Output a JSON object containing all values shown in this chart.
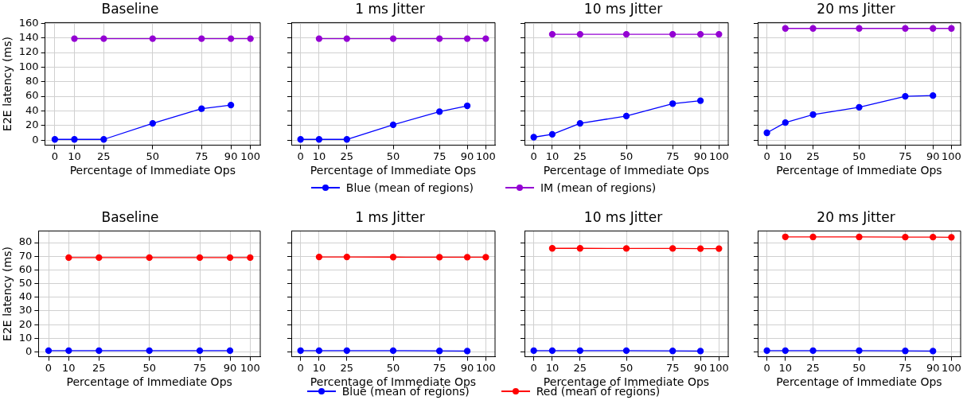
{
  "chart_data": [
    {
      "type": "line",
      "title": "Baseline",
      "xlabel": "Percentage of Immediate Ops",
      "ylabel": "E2E latency (ms)",
      "xlim": [
        -5,
        105
      ],
      "xticks": [
        0,
        10,
        25,
        50,
        75,
        90,
        100
      ],
      "ylim": [
        -7,
        161
      ],
      "yticks": [
        0,
        20,
        40,
        60,
        80,
        100,
        120,
        140,
        160
      ],
      "grid": true,
      "marker": "circle",
      "legend": "bottom",
      "series": [
        {
          "name": "Blue (mean of regions)",
          "color": "#0000ff",
          "x": [
            0,
            10,
            25,
            50,
            75,
            90
          ],
          "values": [
            1,
            1,
            1,
            23,
            43,
            48
          ]
        },
        {
          "name": "IM (mean of regions)",
          "color": "#9400d3",
          "x": [
            10,
            25,
            50,
            75,
            90,
            100
          ],
          "values": [
            139,
            139,
            139,
            139,
            139,
            139
          ]
        }
      ]
    },
    {
      "type": "line",
      "title": "1 ms Jitter",
      "xlabel": "Percentage of Immediate Ops",
      "xlim": [
        -5,
        105
      ],
      "xticks": [
        0,
        10,
        25,
        50,
        75,
        90,
        100
      ],
      "ylim": [
        -7,
        161
      ],
      "yticks": [
        0,
        20,
        40,
        60,
        80,
        100,
        120,
        140,
        160
      ],
      "tick_labels": "x",
      "grid": true,
      "marker": "circle",
      "series": [
        {
          "color": "#0000ff",
          "x": [
            0,
            10,
            25,
            50,
            75,
            90
          ],
          "values": [
            1,
            1,
            1,
            21,
            39,
            47
          ]
        },
        {
          "color": "#9400d3",
          "x": [
            10,
            25,
            50,
            75,
            90,
            100
          ],
          "values": [
            139,
            139,
            139,
            139,
            139,
            139
          ]
        }
      ]
    },
    {
      "type": "line",
      "title": "10 ms Jitter",
      "xlabel": "Percentage of Immediate Ops",
      "xlim": [
        -5,
        105
      ],
      "xticks": [
        0,
        10,
        25,
        50,
        75,
        90,
        100
      ],
      "ylim": [
        -7,
        161
      ],
      "yticks": [
        0,
        20,
        40,
        60,
        80,
        100,
        120,
        140,
        160
      ],
      "tick_labels": "x",
      "grid": true,
      "marker": "circle",
      "series": [
        {
          "color": "#0000ff",
          "x": [
            0,
            10,
            25,
            50,
            75,
            90
          ],
          "values": [
            4,
            8,
            23,
            33,
            50,
            54
          ]
        },
        {
          "color": "#9400d3",
          "x": [
            10,
            25,
            50,
            75,
            90,
            100
          ],
          "values": [
            145,
            145,
            145,
            145,
            145,
            145
          ]
        }
      ]
    },
    {
      "type": "line",
      "title": "20 ms Jitter",
      "xlabel": "Percentage of Immediate Ops",
      "xlim": [
        -5,
        105
      ],
      "xticks": [
        0,
        10,
        25,
        50,
        75,
        90,
        100
      ],
      "ylim": [
        -7,
        161
      ],
      "yticks": [
        0,
        20,
        40,
        60,
        80,
        100,
        120,
        140,
        160
      ],
      "tick_labels": "x",
      "grid": true,
      "marker": "circle",
      "series": [
        {
          "color": "#0000ff",
          "x": [
            0,
            10,
            25,
            50,
            75,
            90
          ],
          "values": [
            10,
            24,
            35,
            45,
            60,
            61
          ]
        },
        {
          "color": "#9400d3",
          "x": [
            10,
            25,
            50,
            75,
            90,
            100
          ],
          "values": [
            153,
            153,
            153,
            153,
            153,
            153
          ]
        }
      ]
    },
    {
      "type": "line",
      "title": "Baseline",
      "xlabel": "Percentage of Immediate Ops",
      "ylabel": "E2E latency (ms)",
      "xlim": [
        -5,
        105
      ],
      "xticks": [
        0,
        10,
        25,
        50,
        75,
        90,
        100
      ],
      "ylim": [
        -3.5,
        88.5
      ],
      "yticks": [
        0,
        10,
        20,
        30,
        40,
        50,
        60,
        70,
        80
      ],
      "grid": true,
      "marker": "circle",
      "legend": "bottom",
      "series": [
        {
          "name": "Blue (mean of regions)",
          "color": "#0000ff",
          "x": [
            0,
            10,
            25,
            50,
            75,
            90
          ],
          "values": [
            1,
            1,
            1,
            1,
            1,
            1
          ]
        },
        {
          "name": "Red (mean of regions)",
          "color": "#ff0000",
          "x": [
            10,
            25,
            50,
            75,
            90,
            100
          ],
          "values": [
            69,
            69,
            69,
            69,
            69,
            69
          ]
        }
      ]
    },
    {
      "type": "line",
      "title": "1 ms Jitter",
      "xlabel": "Percentage of Immediate Ops",
      "xlim": [
        -5,
        105
      ],
      "xticks": [
        0,
        10,
        25,
        50,
        75,
        90,
        100
      ],
      "ylim": [
        -3.5,
        88.5
      ],
      "yticks": [
        0,
        10,
        20,
        30,
        40,
        50,
        60,
        70,
        80
      ],
      "tick_labels": "x",
      "grid": true,
      "marker": "circle",
      "series": [
        {
          "color": "#0000ff",
          "x": [
            0,
            10,
            25,
            50,
            75,
            90
          ],
          "values": [
            1,
            1,
            1,
            1,
            0.8,
            0.7
          ]
        },
        {
          "color": "#ff0000",
          "x": [
            10,
            25,
            50,
            75,
            90,
            100
          ],
          "values": [
            69.5,
            69.5,
            69.4,
            69.3,
            69.3,
            69.3
          ]
        }
      ]
    },
    {
      "type": "line",
      "title": "10 ms Jitter",
      "xlabel": "Percentage of Immediate Ops",
      "xlim": [
        -5,
        105
      ],
      "xticks": [
        0,
        10,
        25,
        50,
        75,
        90,
        100
      ],
      "ylim": [
        -3.5,
        88.5
      ],
      "yticks": [
        0,
        10,
        20,
        30,
        40,
        50,
        60,
        70,
        80
      ],
      "tick_labels": "x",
      "grid": true,
      "marker": "circle",
      "series": [
        {
          "color": "#0000ff",
          "x": [
            0,
            10,
            25,
            50,
            75,
            90
          ],
          "values": [
            1,
            1,
            1,
            1,
            0.8,
            0.7
          ]
        },
        {
          "color": "#ff0000",
          "x": [
            10,
            25,
            50,
            75,
            90,
            100
          ],
          "values": [
            75.8,
            75.8,
            75.7,
            75.7,
            75.6,
            75.6
          ]
        }
      ]
    },
    {
      "type": "line",
      "title": "20 ms Jitter",
      "xlabel": "Percentage of Immediate Ops",
      "xlim": [
        -5,
        105
      ],
      "xticks": [
        0,
        10,
        25,
        50,
        75,
        90,
        100
      ],
      "ylim": [
        -3.5,
        88.5
      ],
      "yticks": [
        0,
        10,
        20,
        30,
        40,
        50,
        60,
        70,
        80
      ],
      "tick_labels": "x",
      "grid": true,
      "marker": "circle",
      "series": [
        {
          "color": "#0000ff",
          "x": [
            0,
            10,
            25,
            50,
            75,
            90
          ],
          "values": [
            1,
            1,
            1,
            1,
            0.8,
            0.7
          ]
        },
        {
          "color": "#ff0000",
          "x": [
            10,
            25,
            50,
            75,
            90,
            100
          ],
          "values": [
            84.2,
            84.1,
            84.1,
            84,
            84,
            83.9
          ]
        }
      ]
    }
  ]
}
